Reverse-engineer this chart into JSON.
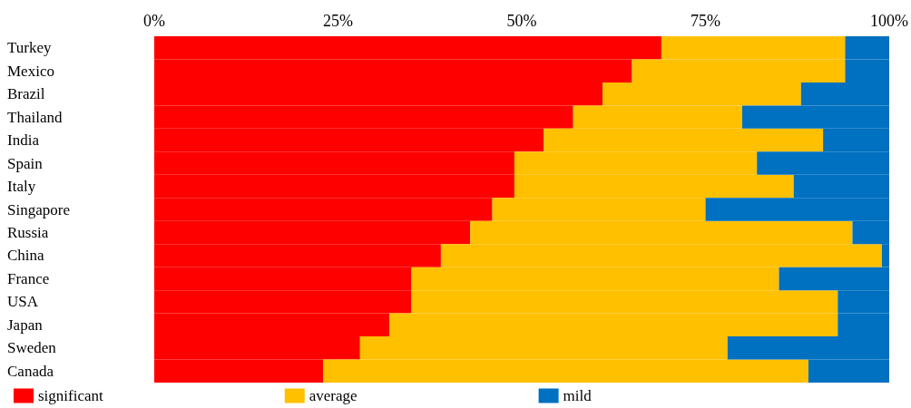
{
  "chart_data": {
    "type": "bar",
    "orientation": "horizontal",
    "stacked": true,
    "categories": [
      "Turkey",
      "Mexico",
      "Brazil",
      "Thailand",
      "India",
      "Spain",
      "Italy",
      "Singapore",
      "Russia",
      "China",
      "France",
      "USA",
      "Japan",
      "Sweden",
      "Canada"
    ],
    "series": [
      {
        "name": "significant",
        "color": "#ff0000",
        "values": [
          69,
          65,
          61,
          57,
          53,
          49,
          49,
          46,
          43,
          39,
          35,
          35,
          32,
          28,
          23
        ]
      },
      {
        "name": "average",
        "color": "#ffc000",
        "values": [
          25,
          29,
          27,
          23,
          38,
          33,
          38,
          29,
          52,
          60,
          50,
          58,
          61,
          50,
          66
        ]
      },
      {
        "name": "mild",
        "color": "#0070c0",
        "values": [
          6,
          6,
          12,
          20,
          9,
          18,
          13,
          25,
          5,
          1,
          15,
          7,
          7,
          22,
          11
        ]
      }
    ],
    "xlim": [
      0,
      100
    ],
    "xticks": [
      {
        "value": 0,
        "label": "0%"
      },
      {
        "value": 25,
        "label": "25%"
      },
      {
        "value": 50,
        "label": "50%"
      },
      {
        "value": 75,
        "label": "75%"
      },
      {
        "value": 100,
        "label": "100%"
      }
    ],
    "grid": false,
    "legend": "bottom left"
  }
}
